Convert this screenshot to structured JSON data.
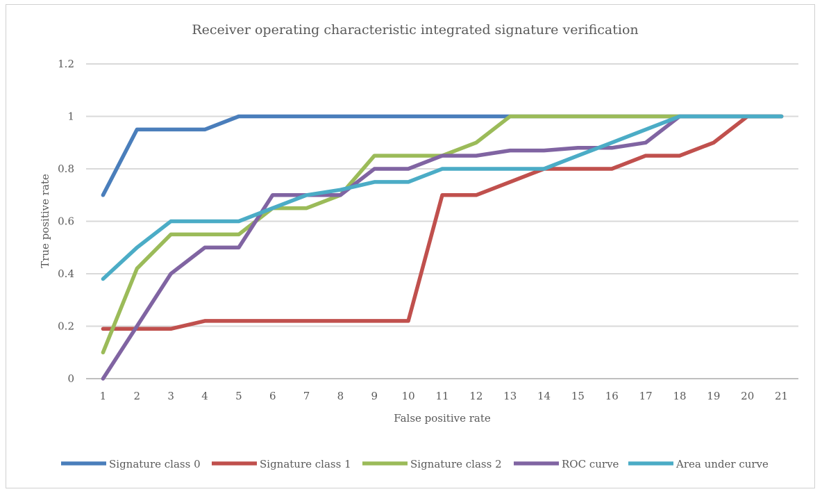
{
  "chart_data": {
    "type": "line",
    "title": "Receiver operating characteristic integrated signature verification",
    "xlabel": "False positive rate",
    "ylabel": "True positive rate",
    "categories": [
      "1",
      "2",
      "3",
      "4",
      "5",
      "6",
      "7",
      "8",
      "9",
      "10",
      "11",
      "12",
      "13",
      "14",
      "15",
      "16",
      "17",
      "18",
      "19",
      "20",
      "21"
    ],
    "ylim": [
      0,
      1.2
    ],
    "yticks": [
      "0",
      "0.2",
      "0.4",
      "0.6",
      "0.8",
      "1",
      "1.2"
    ],
    "grid": true,
    "legend_position": "bottom",
    "series": [
      {
        "name": "Signature class 0",
        "color": "#4a7ebb",
        "values": [
          0.7,
          0.95,
          0.95,
          0.95,
          1,
          1,
          1,
          1,
          1,
          1,
          1,
          1,
          1,
          1,
          1,
          1,
          1,
          1,
          1,
          1,
          1
        ]
      },
      {
        "name": "Signature class 1",
        "color": "#c0504d",
        "values": [
          0.19,
          0.19,
          0.19,
          0.22,
          0.22,
          0.22,
          0.22,
          0.22,
          0.22,
          0.22,
          0.7,
          0.7,
          0.75,
          0.8,
          0.8,
          0.8,
          0.85,
          0.85,
          0.9,
          1,
          1
        ]
      },
      {
        "name": "Signature class 2",
        "color": "#9bbb59",
        "values": [
          0.1,
          0.42,
          0.55,
          0.55,
          0.55,
          0.65,
          0.65,
          0.7,
          0.85,
          0.85,
          0.85,
          0.9,
          1,
          1,
          1,
          1,
          1,
          1,
          1,
          1,
          1
        ]
      },
      {
        "name": "ROC curve",
        "color": "#8064a2",
        "values": [
          0,
          0.2,
          0.4,
          0.5,
          0.5,
          0.7,
          0.7,
          0.7,
          0.8,
          0.8,
          0.85,
          0.85,
          0.87,
          0.87,
          0.88,
          0.88,
          0.9,
          1,
          1,
          1,
          1
        ]
      },
      {
        "name": "Area under curve",
        "color": "#4bacc6",
        "values": [
          0.38,
          0.5,
          0.6,
          0.6,
          0.6,
          0.65,
          0.7,
          0.72,
          0.75,
          0.75,
          0.8,
          0.8,
          0.8,
          0.8,
          0.85,
          0.9,
          0.95,
          1,
          1,
          1,
          1
        ]
      }
    ]
  }
}
